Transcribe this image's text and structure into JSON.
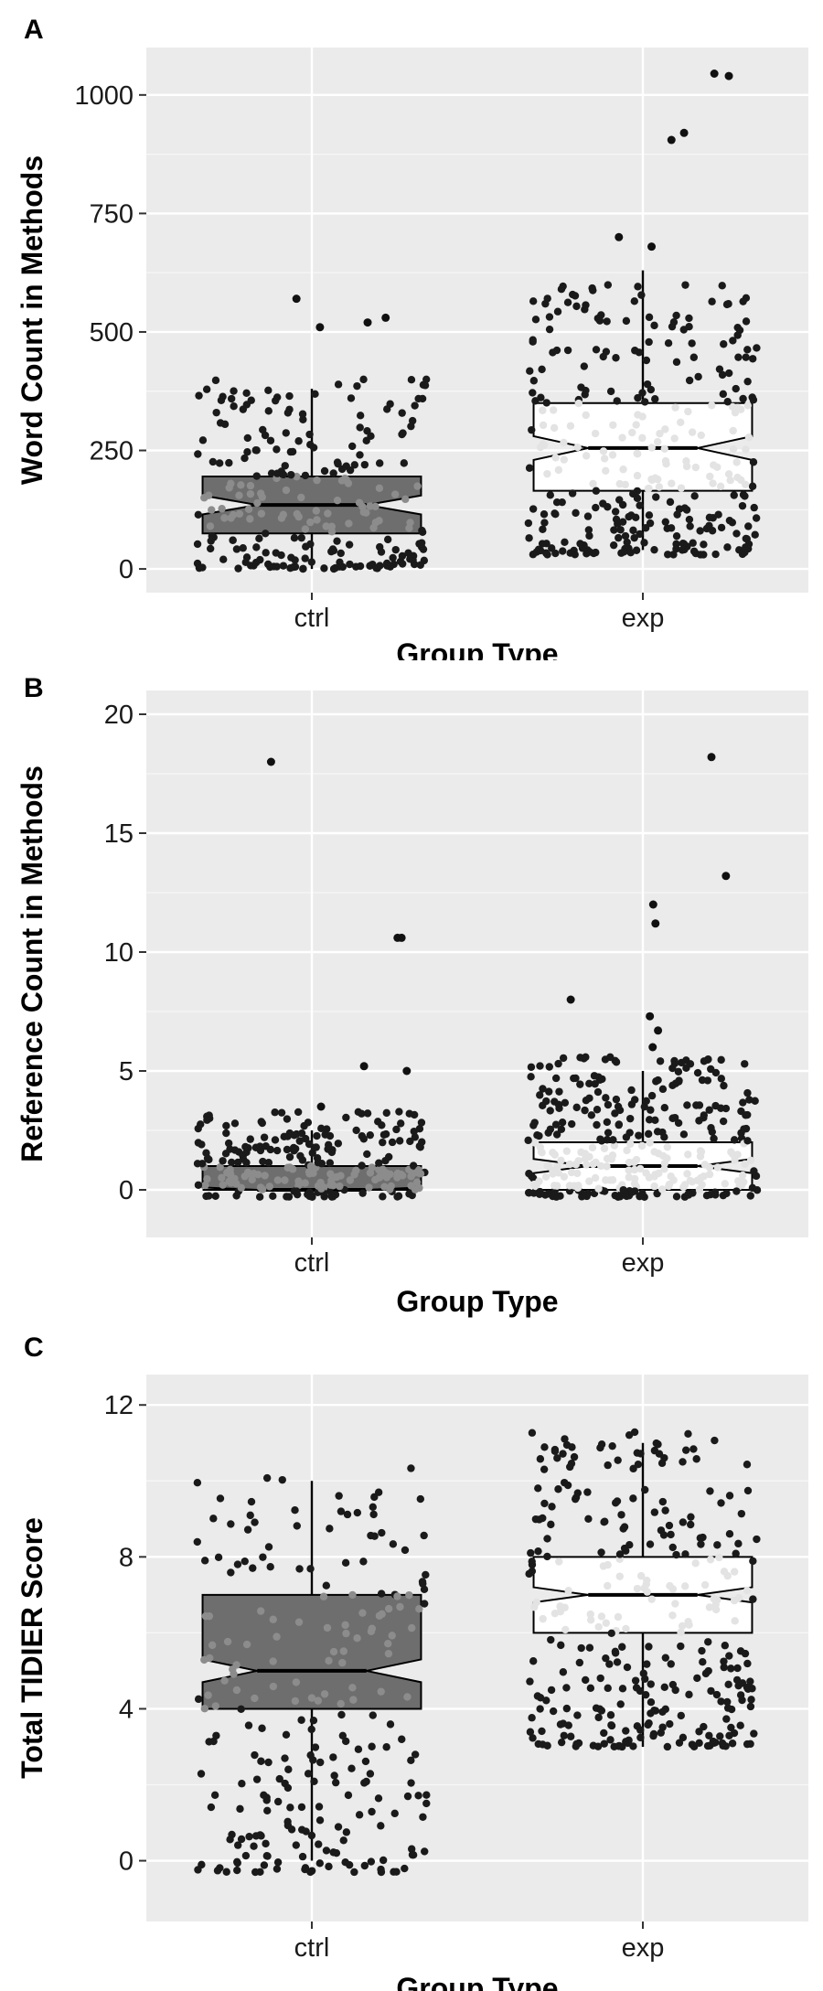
{
  "chart_data": [
    {
      "type": "box",
      "panel": "A",
      "xlabel": "Group Type",
      "ylabel": "Word Count in Methods",
      "categories": [
        "ctrl",
        "exp"
      ],
      "ylim": [
        -50,
        1100
      ],
      "yticks": [
        0,
        250,
        500,
        750,
        1000
      ],
      "grid": true,
      "notched": true,
      "jitter_points": true,
      "box_fill": {
        "ctrl": "#6e6e6e",
        "exp": "#ffffff"
      },
      "boxes": [
        {
          "group": "ctrl",
          "min": 0,
          "q1": 75,
          "median": 135,
          "q3": 195,
          "max": 380,
          "notch_low": 115,
          "notch_high": 155,
          "outliers": [
            510,
            520,
            530,
            570
          ],
          "scatter_range": [
            0,
            400
          ],
          "scatter_count": 240
        },
        {
          "group": "exp",
          "min": 40,
          "q1": 165,
          "median": 255,
          "q3": 350,
          "max": 630,
          "notch_low": 230,
          "notch_high": 280,
          "outliers": [
            680,
            700,
            905,
            920,
            1040,
            1045
          ],
          "scatter_range": [
            30,
            600
          ],
          "scatter_count": 320
        }
      ]
    },
    {
      "type": "box",
      "panel": "B",
      "xlabel": "Group Type",
      "ylabel": "Reference Count in Methods",
      "categories": [
        "ctrl",
        "exp"
      ],
      "ylim": [
        -2,
        21
      ],
      "yticks": [
        0,
        5,
        10,
        15,
        20
      ],
      "grid": true,
      "notched": true,
      "jitter_points": true,
      "box_fill": {
        "ctrl": "#6e6e6e",
        "exp": "#ffffff"
      },
      "boxes": [
        {
          "group": "ctrl",
          "min": 0,
          "q1": 0,
          "median": 0,
          "q3": 1,
          "max": 2.5,
          "notch_low": 0,
          "notch_high": 0.1,
          "outliers": [
            3.5,
            5,
            5.2,
            10.6,
            10.6,
            18
          ],
          "scatter_range": [
            -0.3,
            3.3
          ],
          "scatter_count": 240
        },
        {
          "group": "exp",
          "min": 0,
          "q1": 0,
          "median": 1,
          "q3": 2,
          "max": 5,
          "notch_low": 0.7,
          "notch_high": 1.3,
          "outliers": [
            6,
            6.7,
            7.3,
            8,
            11.2,
            12,
            13.2,
            18.2
          ],
          "scatter_range": [
            -0.3,
            5.6
          ],
          "scatter_count": 320
        }
      ]
    },
    {
      "type": "box",
      "panel": "C",
      "xlabel": "Group Type",
      "ylabel": "Total TIDIER Score",
      "categories": [
        "ctrl",
        "exp"
      ],
      "ylim": [
        -1.6,
        12.8
      ],
      "yticks": [
        0,
        4,
        8,
        12
      ],
      "grid": true,
      "notched": true,
      "jitter_points": true,
      "box_fill": {
        "ctrl": "#6e6e6e",
        "exp": "#ffffff"
      },
      "boxes": [
        {
          "group": "ctrl",
          "min": 0,
          "q1": 4,
          "median": 5,
          "q3": 7,
          "max": 10,
          "notch_low": 4.7,
          "notch_high": 5.3,
          "outliers": [],
          "scatter_range": [
            -0.3,
            10.4
          ],
          "scatter_count": 240
        },
        {
          "group": "exp",
          "min": 3,
          "q1": 6,
          "median": 7,
          "q3": 8,
          "max": 11,
          "notch_low": 6.8,
          "notch_high": 7.2,
          "outliers": [],
          "scatter_range": [
            3,
            11.3
          ],
          "scatter_count": 320
        }
      ]
    }
  ]
}
